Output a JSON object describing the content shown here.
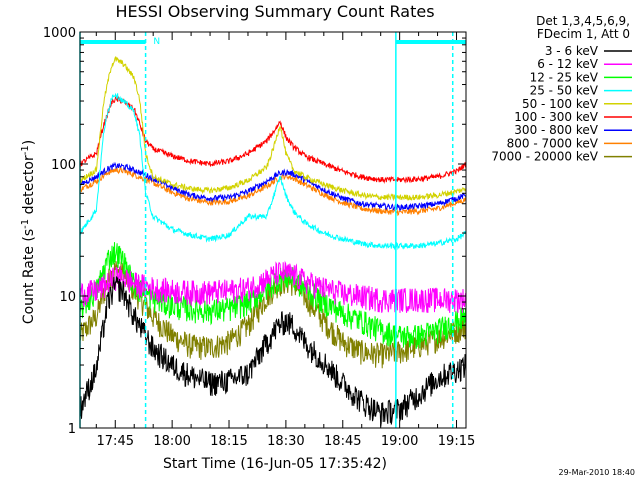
{
  "chart_data": {
    "type": "line",
    "title": "HESSI Observing Summary Count Rates",
    "xlabel": "Start Time (16-Jun-05 17:35:42)",
    "ylabel_main": "Count Rate (s",
    "ylabel_sup1": "-1",
    "ylabel_mid": " detector",
    "ylabel_sup2": "-1",
    "ylabel_end": ")",
    "y_scale": "log",
    "ylim": [
      1,
      1000
    ],
    "xlim_minutes": [
      35.7,
      137.5
    ],
    "x_ticks": [
      {
        "label": "17:45",
        "minutes": 45
      },
      {
        "label": "18:00",
        "minutes": 60
      },
      {
        "label": "18:15",
        "minutes": 75
      },
      {
        "label": "18:30",
        "minutes": 90
      },
      {
        "label": "18:45",
        "minutes": 105
      },
      {
        "label": "19:00",
        "minutes": 120
      },
      {
        "label": "19:15",
        "minutes": 135
      }
    ],
    "y_ticks": [
      {
        "label": "1",
        "value": 1
      },
      {
        "label": "10",
        "value": 10
      },
      {
        "label": "100",
        "value": 100
      },
      {
        "label": "1000",
        "value": 1000
      }
    ],
    "legend": {
      "header": [
        "Det 1,3,4,5,6,9,",
        "FDecim 1, Att 0"
      ],
      "placement": "right"
    },
    "series": [
      {
        "name": "3 - 6 keV",
        "color": "#000000",
        "x": [
          35.7,
          40,
          43,
          45,
          47,
          50,
          55,
          60,
          65,
          70,
          75,
          80,
          85,
          88,
          90,
          92,
          95,
          100,
          105,
          110,
          115,
          120,
          125,
          130,
          135,
          137.5
        ],
        "y": [
          1.4,
          2.8,
          9,
          12,
          11,
          7,
          4,
          3,
          2.5,
          2.2,
          2.3,
          2.6,
          4.5,
          6,
          6.5,
          6,
          4.5,
          3.2,
          2.2,
          1.6,
          1.3,
          1.4,
          1.8,
          2.4,
          2.8,
          3
        ]
      },
      {
        "name": "6 - 12 keV",
        "color": "#ff00ff",
        "x": [
          35.7,
          40,
          43,
          45,
          47,
          50,
          55,
          60,
          65,
          70,
          75,
          80,
          85,
          88,
          90,
          92,
          95,
          100,
          105,
          110,
          115,
          120,
          125,
          130,
          135,
          137.5
        ],
        "y": [
          10.5,
          11,
          12.5,
          14,
          14,
          12.5,
          11.5,
          11,
          10.8,
          10.8,
          11,
          11.5,
          13.5,
          15,
          15,
          14.5,
          13,
          11.5,
          10.5,
          10,
          9.5,
          9.5,
          9.5,
          9.5,
          9.5,
          9.5
        ]
      },
      {
        "name": "12 - 25 keV",
        "color": "#00ff00",
        "x": [
          35.7,
          40,
          43,
          45,
          47,
          50,
          55,
          60,
          65,
          70,
          75,
          80,
          85,
          88,
          90,
          92,
          95,
          100,
          105,
          110,
          115,
          120,
          125,
          130,
          135,
          137.5
        ],
        "y": [
          8,
          11,
          19,
          22,
          19,
          12,
          9.5,
          8.5,
          8,
          7.8,
          8,
          9,
          11.5,
          13.5,
          14,
          13.5,
          11.5,
          9,
          7.5,
          6.5,
          5.5,
          5,
          5,
          5.5,
          6.5,
          7
        ]
      },
      {
        "name": "25 - 50 keV",
        "color": "#00ffff",
        "x": [
          35.7,
          40,
          42,
          44,
          45,
          47,
          50,
          51.5,
          53,
          55,
          60,
          65,
          70,
          75,
          80,
          85,
          87,
          88.5,
          90,
          92,
          95,
          100,
          105,
          110,
          115,
          120,
          125,
          130,
          135,
          137.5
        ],
        "y": [
          30,
          45,
          180,
          320,
          340,
          300,
          250,
          160,
          60,
          40,
          32,
          29,
          27,
          29,
          40,
          40,
          60,
          80,
          58,
          44,
          36,
          30,
          27,
          25,
          24,
          24,
          24,
          25,
          27,
          30
        ]
      },
      {
        "name": "50 - 100 keV",
        "color": "#d2d200",
        "x": [
          35.7,
          40,
          42,
          44,
          45,
          47,
          50,
          51.5,
          53,
          55,
          60,
          65,
          70,
          75,
          80,
          85,
          87,
          88.5,
          90,
          92,
          95,
          100,
          105,
          110,
          115,
          120,
          125,
          130,
          135,
          137.5
        ],
        "y": [
          75,
          90,
          300,
          560,
          620,
          580,
          450,
          300,
          120,
          80,
          70,
          65,
          63,
          66,
          75,
          95,
          140,
          200,
          120,
          90,
          80,
          70,
          63,
          58,
          56,
          56,
          56,
          58,
          62,
          65
        ]
      },
      {
        "name": "100 - 300 keV",
        "color": "#ff0000",
        "x": [
          35.7,
          40,
          42,
          44,
          45,
          47,
          50,
          51.5,
          53,
          55,
          60,
          65,
          70,
          75,
          80,
          85,
          87,
          88.5,
          90,
          92,
          95,
          100,
          105,
          110,
          115,
          120,
          125,
          130,
          135,
          137.5
        ],
        "y": [
          100,
          120,
          200,
          290,
          310,
          300,
          260,
          200,
          150,
          130,
          115,
          105,
          100,
          105,
          120,
          150,
          180,
          210,
          160,
          135,
          115,
          100,
          88,
          80,
          76,
          76,
          77,
          80,
          88,
          100
        ]
      },
      {
        "name": "300 - 800 keV",
        "color": "#0000ff",
        "x": [
          35.7,
          40,
          43,
          45,
          47,
          50,
          55,
          60,
          65,
          70,
          75,
          80,
          85,
          88,
          90,
          92,
          95,
          100,
          105,
          110,
          115,
          120,
          125,
          130,
          135,
          137.5
        ],
        "y": [
          70,
          80,
          92,
          97,
          96,
          90,
          78,
          66,
          58,
          55,
          56,
          62,
          74,
          84,
          87,
          84,
          76,
          64,
          55,
          50,
          48,
          47,
          48,
          50,
          55,
          58
        ]
      },
      {
        "name": "800 - 7000 keV",
        "color": "#ff8000",
        "x": [
          35.7,
          40,
          43,
          45,
          47,
          50,
          55,
          60,
          65,
          70,
          75,
          80,
          85,
          88,
          90,
          92,
          95,
          100,
          105,
          110,
          115,
          120,
          125,
          130,
          135,
          137.5
        ],
        "y": [
          64,
          74,
          86,
          90,
          89,
          83,
          72,
          61,
          54,
          51,
          52,
          57,
          68,
          78,
          81,
          78,
          70,
          59,
          51,
          46,
          44,
          43,
          44,
          46,
          51,
          54
        ]
      },
      {
        "name": "7000 - 20000 keV",
        "color": "#808000",
        "x": [
          35.7,
          40,
          43,
          45,
          47,
          50,
          55,
          60,
          65,
          70,
          75,
          80,
          85,
          88,
          90,
          92,
          95,
          100,
          105,
          110,
          115,
          120,
          125,
          130,
          135,
          137.5
        ],
        "y": [
          5,
          7,
          13,
          16,
          15,
          11,
          7,
          5,
          4.2,
          4.1,
          4.5,
          6,
          10,
          12.5,
          13,
          12.5,
          10,
          6.5,
          4.5,
          3.8,
          3.6,
          3.8,
          4.2,
          4.8,
          5.5,
          6
        ]
      }
    ],
    "markers": {
      "solid_vertical_minutes": [
        35.7,
        119
      ],
      "dashed_vertical_minutes": [
        53,
        134
      ],
      "top_bars_minutes": [
        [
          35.7,
          53
        ],
        [
          119,
          137.5
        ]
      ],
      "top_bar_label": "N",
      "top_bar_label_minutes": 54
    },
    "grid": false
  },
  "footer_date": "29-Mar-2010 18:40",
  "colors": {
    "background": "#ffffff",
    "axes": "#000000",
    "markers": "#00ffff"
  }
}
